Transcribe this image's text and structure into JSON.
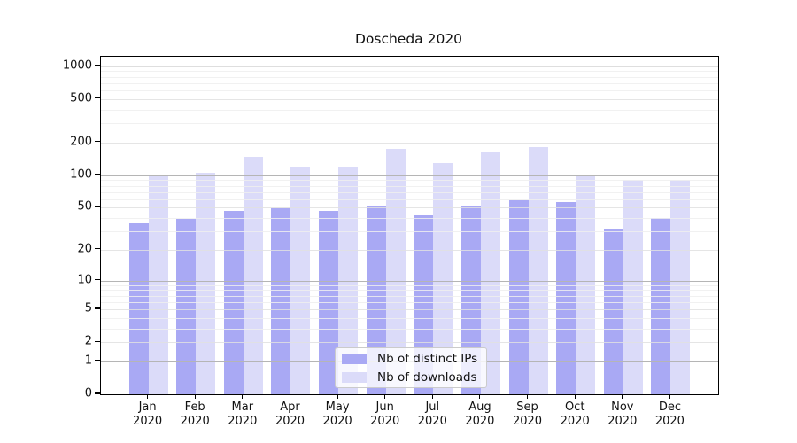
{
  "chart_data": {
    "type": "bar",
    "title": "Doscheda 2020",
    "categories": [
      "Jan",
      "Feb",
      "Mar",
      "Apr",
      "May",
      "Jun",
      "Jul",
      "Aug",
      "Sep",
      "Oct",
      "Nov",
      "Dec"
    ],
    "category_year": "2020",
    "series": [
      {
        "name": "Nb of distinct IPs",
        "color": "#a9a9f4",
        "values": [
          36,
          39,
          47,
          49,
          47,
          51,
          42,
          52,
          59,
          56,
          32,
          40
        ]
      },
      {
        "name": "Nb of downloads",
        "color": "#dbdbf9",
        "values": [
          99,
          105,
          148,
          119,
          117,
          175,
          130,
          163,
          180,
          102,
          90,
          90
        ]
      }
    ],
    "y_axis": {
      "scale": "log10(1+value)",
      "tick_values": [
        0,
        1,
        2,
        5,
        10,
        20,
        50,
        100,
        200,
        500,
        1000
      ],
      "major_grid_values": [
        1,
        10,
        100
      ],
      "ylim": [
        0,
        1200
      ]
    },
    "grid": true,
    "legend_position": "inside-bottom-center",
    "colors": {
      "major_gridline": "#b5b5b5",
      "labeled_gridline": "#e0e0e0",
      "minor_gridline": "#eeeeee",
      "top_gridline": "#d8d8d8",
      "axis": "#000000",
      "text": "#111111",
      "background": "#ffffff"
    }
  }
}
